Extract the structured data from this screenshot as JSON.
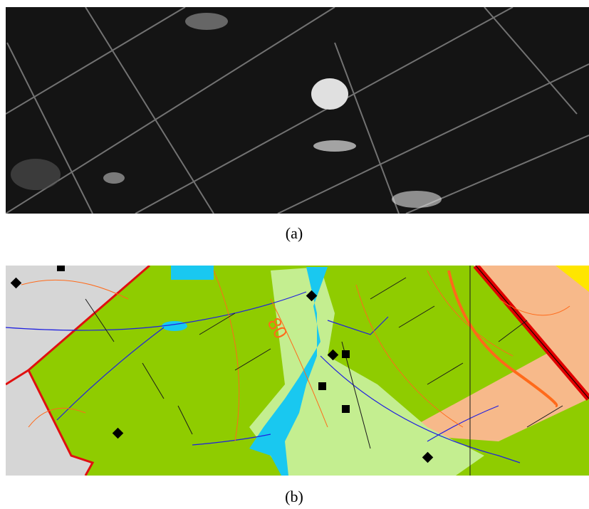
{
  "panels": [
    {
      "caption": "(a)"
    },
    {
      "caption": "(b)",
      "map_label": "80"
    }
  ]
}
